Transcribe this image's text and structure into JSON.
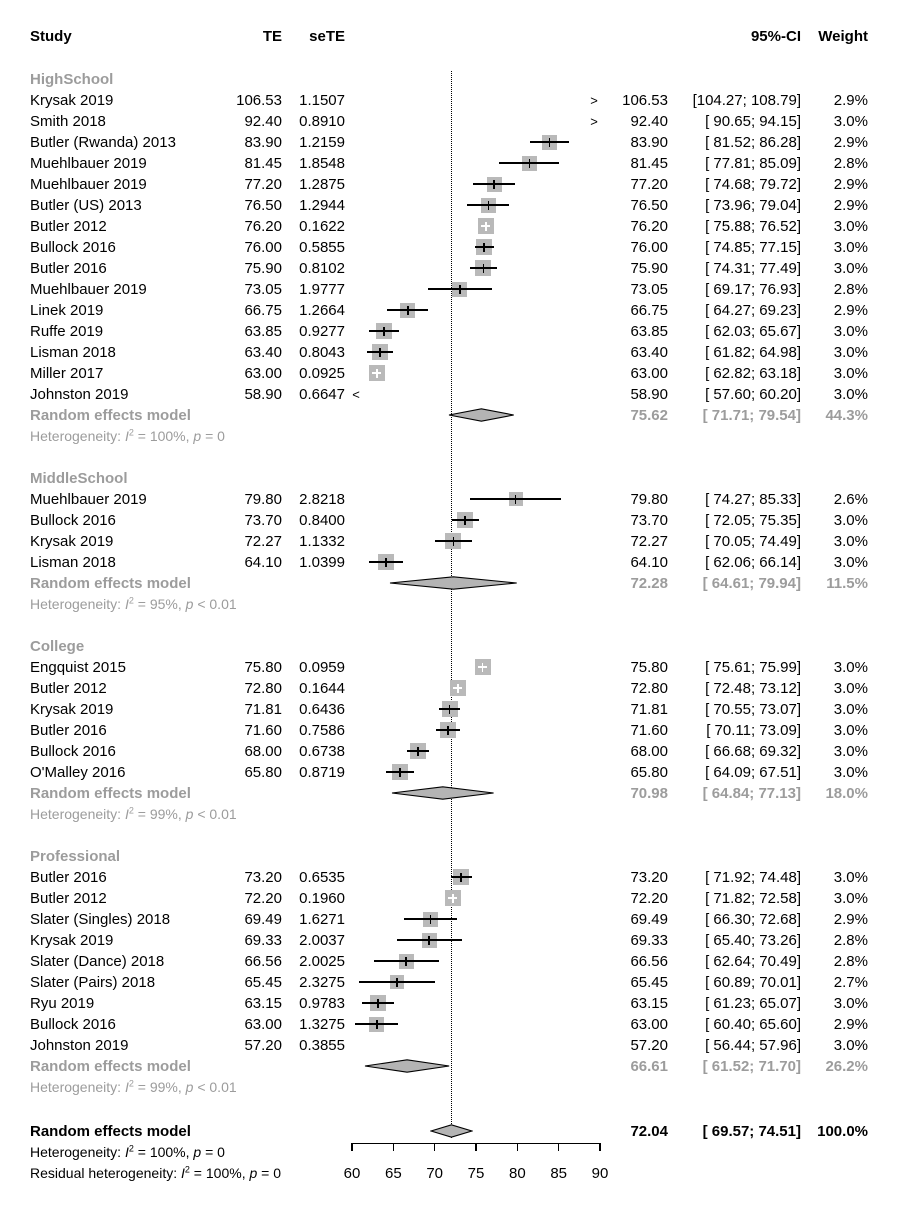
{
  "header": {
    "study": "Study",
    "te": "TE",
    "sete": "seTE",
    "ci": "95%-CI",
    "weight": "Weight"
  },
  "chart_data": {
    "type": "forest",
    "xlim": [
      60,
      90
    ],
    "xticks": [
      "60",
      "65",
      "70",
      "75",
      "80",
      "85",
      "90"
    ],
    "reference_line": 72.04,
    "legend_position": "none",
    "groups": [
      {
        "name": "HighSchool",
        "studies": [
          {
            "study": "Krysak 2019",
            "te": "106.53",
            "sete": "1.1507",
            "lo": 104.27,
            "hi": 108.79,
            "ci": "[104.27; 108.79]",
            "weight": "2.9%",
            "clip": "right"
          },
          {
            "study": "Smith 2018",
            "te": "92.40",
            "sete": "0.8910",
            "lo": 90.65,
            "hi": 94.15,
            "ci": "[ 90.65; 94.15]",
            "weight": "3.0%",
            "clip": "right"
          },
          {
            "study": "Butler (Rwanda) 2013",
            "te": "83.90",
            "sete": "1.2159",
            "lo": 81.52,
            "hi": 86.28,
            "ci": "[ 81.52; 86.28]",
            "weight": "2.9%",
            "clip": "none"
          },
          {
            "study": "Muehlbauer 2019",
            "te": "81.45",
            "sete": "1.8548",
            "lo": 77.81,
            "hi": 85.09,
            "ci": "[ 77.81; 85.09]",
            "weight": "2.8%",
            "clip": "none"
          },
          {
            "study": "Muehlbauer 2019",
            "te": "77.20",
            "sete": "1.2875",
            "lo": 74.68,
            "hi": 79.72,
            "ci": "[ 74.68; 79.72]",
            "weight": "2.9%",
            "clip": "none"
          },
          {
            "study": "Butler (US) 2013",
            "te": "76.50",
            "sete": "1.2944",
            "lo": 73.96,
            "hi": 79.04,
            "ci": "[ 73.96; 79.04]",
            "weight": "2.9%",
            "clip": "none"
          },
          {
            "study": "Butler 2012",
            "te": "76.20",
            "sete": "0.1622",
            "lo": 75.88,
            "hi": 76.52,
            "ci": "[ 75.88; 76.52]",
            "weight": "3.0%",
            "clip": "none"
          },
          {
            "study": "Bullock 2016",
            "te": "76.00",
            "sete": "0.5855",
            "lo": 74.85,
            "hi": 77.15,
            "ci": "[ 74.85; 77.15]",
            "weight": "3.0%",
            "clip": "none"
          },
          {
            "study": "Butler 2016",
            "te": "75.90",
            "sete": "0.8102",
            "lo": 74.31,
            "hi": 77.49,
            "ci": "[ 74.31; 77.49]",
            "weight": "3.0%",
            "clip": "none"
          },
          {
            "study": "Muehlbauer 2019",
            "te": "73.05",
            "sete": "1.9777",
            "lo": 69.17,
            "hi": 76.93,
            "ci": "[ 69.17; 76.93]",
            "weight": "2.8%",
            "clip": "none"
          },
          {
            "study": "Linek 2019",
            "te": "66.75",
            "sete": "1.2664",
            "lo": 64.27,
            "hi": 69.23,
            "ci": "[ 64.27; 69.23]",
            "weight": "2.9%",
            "clip": "none"
          },
          {
            "study": "Ruffe 2019",
            "te": "63.85",
            "sete": "0.9277",
            "lo": 62.03,
            "hi": 65.67,
            "ci": "[ 62.03; 65.67]",
            "weight": "3.0%",
            "clip": "none"
          },
          {
            "study": "Lisman 2018",
            "te": "63.40",
            "sete": "0.8043",
            "lo": 61.82,
            "hi": 64.98,
            "ci": "[ 61.82; 64.98]",
            "weight": "3.0%",
            "clip": "none"
          },
          {
            "study": "Miller 2017",
            "te": "63.00",
            "sete": "0.0925",
            "lo": 62.82,
            "hi": 63.18,
            "ci": "[ 62.82; 63.18]",
            "weight": "3.0%",
            "clip": "none"
          },
          {
            "study": "Johnston 2019",
            "te": "58.90",
            "sete": "0.6647",
            "lo": 57.6,
            "hi": 60.2,
            "ci": "[ 57.60; 60.20]",
            "weight": "3.0%",
            "clip": "left"
          }
        ],
        "pooled": {
          "label": "Random effects model",
          "te": "75.62",
          "lo": 71.71,
          "hi": 79.54,
          "ci": "[ 71.71; 79.54]",
          "weight": "44.3%"
        },
        "heterogeneity": {
          "prefix": "Heterogeneity:",
          "i2": "100%",
          "p": "= 0"
        }
      },
      {
        "name": "MiddleSchool",
        "studies": [
          {
            "study": "Muehlbauer 2019",
            "te": "79.80",
            "sete": "2.8218",
            "lo": 74.27,
            "hi": 85.33,
            "ci": "[ 74.27; 85.33]",
            "weight": "2.6%",
            "clip": "none"
          },
          {
            "study": "Bullock 2016",
            "te": "73.70",
            "sete": "0.8400",
            "lo": 72.05,
            "hi": 75.35,
            "ci": "[ 72.05; 75.35]",
            "weight": "3.0%",
            "clip": "none"
          },
          {
            "study": "Krysak 2019",
            "te": "72.27",
            "sete": "1.1332",
            "lo": 70.05,
            "hi": 74.49,
            "ci": "[ 70.05; 74.49]",
            "weight": "3.0%",
            "clip": "none"
          },
          {
            "study": "Lisman 2018",
            "te": "64.10",
            "sete": "1.0399",
            "lo": 62.06,
            "hi": 66.14,
            "ci": "[ 62.06; 66.14]",
            "weight": "3.0%",
            "clip": "none"
          }
        ],
        "pooled": {
          "label": "Random effects model",
          "te": "72.28",
          "lo": 64.61,
          "hi": 79.94,
          "ci": "[ 64.61; 79.94]",
          "weight": "11.5%"
        },
        "heterogeneity": {
          "prefix": "Heterogeneity:",
          "i2": "95%",
          "p": "< 0.01"
        }
      },
      {
        "name": "College",
        "studies": [
          {
            "study": "Engquist 2015",
            "te": "75.80",
            "sete": "0.0959",
            "lo": 75.61,
            "hi": 75.99,
            "ci": "[ 75.61; 75.99]",
            "weight": "3.0%",
            "clip": "none"
          },
          {
            "study": "Butler 2012",
            "te": "72.80",
            "sete": "0.1644",
            "lo": 72.48,
            "hi": 73.12,
            "ci": "[ 72.48; 73.12]",
            "weight": "3.0%",
            "clip": "none"
          },
          {
            "study": "Krysak 2019",
            "te": "71.81",
            "sete": "0.6436",
            "lo": 70.55,
            "hi": 73.07,
            "ci": "[ 70.55; 73.07]",
            "weight": "3.0%",
            "clip": "none"
          },
          {
            "study": "Butler 2016",
            "te": "71.60",
            "sete": "0.7586",
            "lo": 70.11,
            "hi": 73.09,
            "ci": "[ 70.11; 73.09]",
            "weight": "3.0%",
            "clip": "none"
          },
          {
            "study": "Bullock 2016",
            "te": "68.00",
            "sete": "0.6738",
            "lo": 66.68,
            "hi": 69.32,
            "ci": "[ 66.68; 69.32]",
            "weight": "3.0%",
            "clip": "none"
          },
          {
            "study": "O'Malley 2016",
            "te": "65.80",
            "sete": "0.8719",
            "lo": 64.09,
            "hi": 67.51,
            "ci": "[ 64.09; 67.51]",
            "weight": "3.0%",
            "clip": "none"
          }
        ],
        "pooled": {
          "label": "Random effects model",
          "te": "70.98",
          "lo": 64.84,
          "hi": 77.13,
          "ci": "[ 64.84; 77.13]",
          "weight": "18.0%"
        },
        "heterogeneity": {
          "prefix": "Heterogeneity:",
          "i2": "99%",
          "p": "< 0.01"
        }
      },
      {
        "name": "Professional",
        "studies": [
          {
            "study": "Butler 2016",
            "te": "73.20",
            "sete": "0.6535",
            "lo": 71.92,
            "hi": 74.48,
            "ci": "[ 71.92; 74.48]",
            "weight": "3.0%",
            "clip": "none"
          },
          {
            "study": "Butler 2012",
            "te": "72.20",
            "sete": "0.1960",
            "lo": 71.82,
            "hi": 72.58,
            "ci": "[ 71.82; 72.58]",
            "weight": "3.0%",
            "clip": "none"
          },
          {
            "study": "Slater (Singles) 2018",
            "te": "69.49",
            "sete": "1.6271",
            "lo": 66.3,
            "hi": 72.68,
            "ci": "[ 66.30; 72.68]",
            "weight": "2.9%",
            "clip": "none"
          },
          {
            "study": "Krysak 2019",
            "te": "69.33",
            "sete": "2.0037",
            "lo": 65.4,
            "hi": 73.26,
            "ci": "[ 65.40; 73.26]",
            "weight": "2.8%",
            "clip": "none"
          },
          {
            "study": "Slater (Dance) 2018",
            "te": "66.56",
            "sete": "2.0025",
            "lo": 62.64,
            "hi": 70.49,
            "ci": "[ 62.64; 70.49]",
            "weight": "2.8%",
            "clip": "none"
          },
          {
            "study": "Slater (Pairs) 2018",
            "te": "65.45",
            "sete": "2.3275",
            "lo": 60.89,
            "hi": 70.01,
            "ci": "[ 60.89; 70.01]",
            "weight": "2.7%",
            "clip": "none"
          },
          {
            "study": "Ryu 2019",
            "te": "63.15",
            "sete": "0.9783",
            "lo": 61.23,
            "hi": 65.07,
            "ci": "[ 61.23; 65.07]",
            "weight": "3.0%",
            "clip": "none"
          },
          {
            "study": "Bullock 2016",
            "te": "63.00",
            "sete": "1.3275",
            "lo": 60.4,
            "hi": 65.6,
            "ci": "[ 60.40; 65.60]",
            "weight": "2.9%",
            "clip": "none"
          },
          {
            "study": "Johnston 2019",
            "te": "57.20",
            "sete": "0.3855",
            "lo": 56.44,
            "hi": 57.96,
            "ci": "[ 56.44; 57.96]",
            "weight": "3.0%",
            "clip": "hidden"
          }
        ],
        "pooled": {
          "label": "Random effects model",
          "te": "66.61",
          "lo": 61.52,
          "hi": 71.7,
          "ci": "[ 61.52; 71.70]",
          "weight": "26.2%"
        },
        "heterogeneity": {
          "prefix": "Heterogeneity:",
          "i2": "99%",
          "p": "< 0.01"
        }
      }
    ],
    "overall": {
      "label": "Random effects model",
      "te": "72.04",
      "lo": 69.57,
      "hi": 74.51,
      "ci": "[ 69.57; 74.51]",
      "weight": "100.0%"
    },
    "overall_heterogeneity": {
      "prefix": "Heterogeneity:",
      "i2": "100%",
      "p": "= 0"
    },
    "residual_heterogeneity": {
      "prefix": "Residual heterogeneity:",
      "i2": "100%",
      "p": "= 0"
    }
  }
}
